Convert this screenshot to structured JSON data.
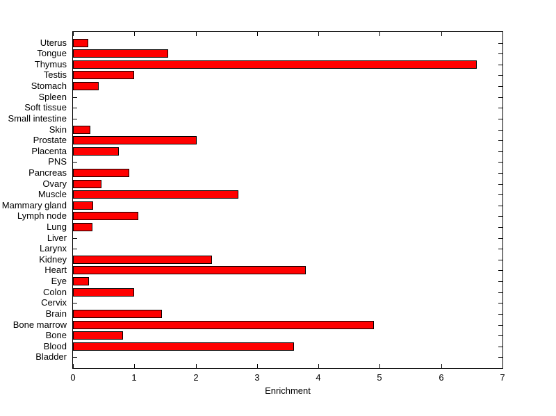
{
  "chart_data": {
    "type": "bar",
    "orientation": "horizontal",
    "xlabel": "Enrichment",
    "categories": [
      "Uterus",
      "Tongue",
      "Thymus",
      "Testis",
      "Stomach",
      "Spleen",
      "Soft tissue",
      "Small intestine",
      "Skin",
      "Prostate",
      "Placenta",
      "PNS",
      "Pancreas",
      "Ovary",
      "Muscle",
      "Mammary gland",
      "Lymph node",
      "Lung",
      "Liver",
      "Larynx",
      "Kidney",
      "Heart",
      "Eye",
      "Colon",
      "Cervix",
      "Brain",
      "Bone marrow",
      "Bone",
      "Blood",
      "Bladder"
    ],
    "values": [
      0.25,
      1.55,
      6.58,
      1.0,
      0.42,
      0,
      0,
      0,
      0.28,
      2.02,
      0.75,
      0,
      0.92,
      0.47,
      2.7,
      0.33,
      1.06,
      0.32,
      0,
      0,
      2.27,
      3.8,
      0.26,
      1.0,
      0,
      1.45,
      4.9,
      0.82,
      3.6,
      0
    ],
    "xlim": [
      0,
      7
    ],
    "x_tick_labels": [
      "0",
      "1",
      "2",
      "3",
      "4",
      "5",
      "6",
      "7"
    ],
    "grid": false,
    "legend": null,
    "bar_color": "#ff0000",
    "bar_border_color": "#000000",
    "axis_color": "#000000",
    "text_color": "#000000",
    "background_color": "#ffffff"
  }
}
